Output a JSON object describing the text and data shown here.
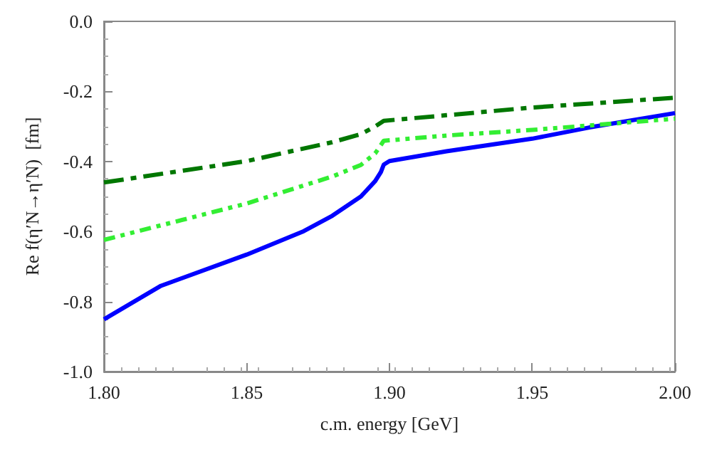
{
  "chart_data": {
    "type": "line",
    "xlabel": "c.m. energy [GeV]",
    "ylabel": "Re f(η′N→η′N)  [fm]",
    "xlim": [
      1.8,
      2.0
    ],
    "ylim": [
      -1.0,
      0.0
    ],
    "xticks": [
      {
        "value": 1.8,
        "label": "1.80"
      },
      {
        "value": 1.85,
        "label": "1.85"
      },
      {
        "value": 1.9,
        "label": "1.90"
      },
      {
        "value": 1.95,
        "label": "1.95"
      },
      {
        "value": 2.0,
        "label": "2.00"
      }
    ],
    "yticks": [
      {
        "value": -1.0,
        "label": "-1.0"
      },
      {
        "value": -0.8,
        "label": "-0.8"
      },
      {
        "value": -0.6,
        "label": "-0.6"
      },
      {
        "value": -0.4,
        "label": "-0.4"
      },
      {
        "value": -0.2,
        "label": "-0.2"
      },
      {
        "value": 0.0,
        "label": "0.0"
      }
    ],
    "grid": false,
    "marker": "none",
    "series": [
      {
        "color": "#0000ff",
        "line_style": "solid",
        "x": [
          1.8,
          1.82,
          1.85,
          1.87,
          1.88,
          1.89,
          1.895,
          1.897,
          1.898,
          1.9,
          1.92,
          1.95,
          1.97,
          2.0
        ],
        "values": [
          -0.851,
          -0.755,
          -0.666,
          -0.599,
          -0.555,
          -0.5,
          -0.456,
          -0.43,
          -0.409,
          -0.399,
          -0.371,
          -0.335,
          -0.303,
          -0.262
        ]
      },
      {
        "color": "#007700",
        "line_style": "dashed",
        "x": [
          1.8,
          1.85,
          1.88,
          1.89,
          1.895,
          1.898,
          1.92,
          1.95,
          2.0
        ],
        "values": [
          -0.46,
          -0.399,
          -0.345,
          -0.322,
          -0.3,
          -0.284,
          -0.268,
          -0.246,
          -0.218
        ]
      },
      {
        "color": "#33ee33",
        "line_style": "dotted",
        "x": [
          1.8,
          1.85,
          1.88,
          1.89,
          1.895,
          1.898,
          1.92,
          1.95,
          2.0
        ],
        "values": [
          -0.624,
          -0.52,
          -0.443,
          -0.41,
          -0.377,
          -0.341,
          -0.326,
          -0.31,
          -0.278
        ]
      }
    ]
  }
}
